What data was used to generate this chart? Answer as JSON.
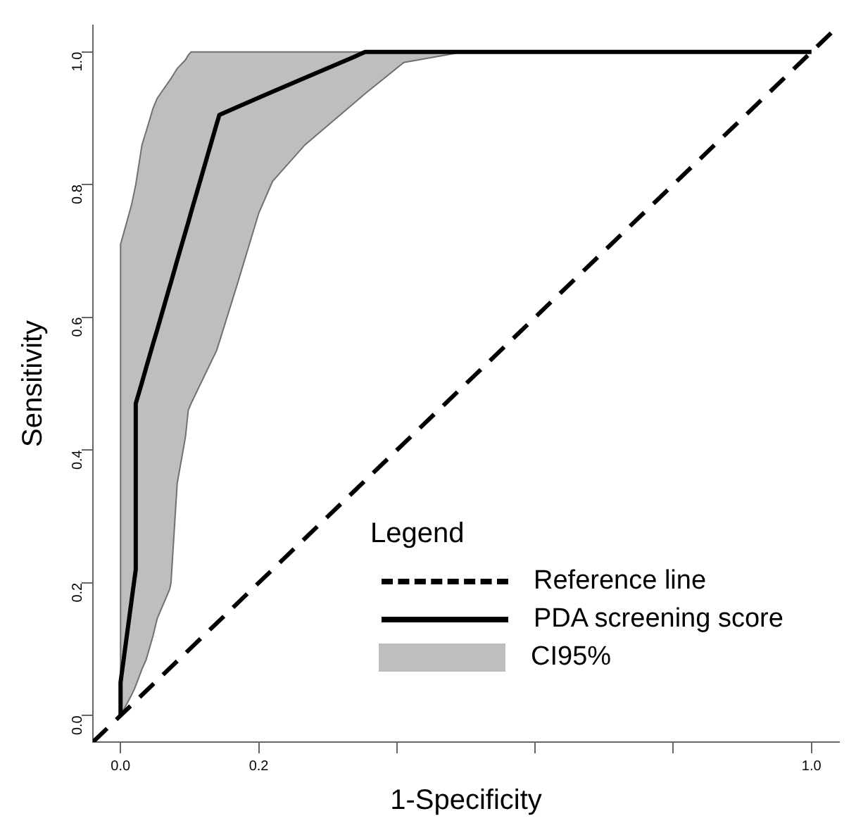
{
  "chart_data": {
    "type": "line",
    "xlabel": "1-Specificity",
    "ylabel": "Sensitivity",
    "legend_title": "Legend",
    "legend": "bottom right",
    "grid": false,
    "marker": "none",
    "annotations": [
      "CI95%"
    ],
    "xlim": [
      -0.04,
      1.04
    ],
    "ylim": [
      -0.04,
      1.04
    ],
    "xticks": [
      {
        "value": 0,
        "label": "0.0"
      },
      {
        "value": 0.2,
        "label": "0.2"
      },
      {
        "value": 0.4,
        "label": null
      },
      {
        "value": 0.6,
        "label": null
      },
      {
        "value": 0.8,
        "label": null
      },
      {
        "value": 1,
        "label": "1.0"
      }
    ],
    "yticks": [
      {
        "value": 0,
        "label": "0.0"
      },
      {
        "value": 0.2,
        "label": "0.2"
      },
      {
        "value": 0.4,
        "label": "0.4"
      },
      {
        "value": 0.6,
        "label": "0.6"
      },
      {
        "value": 0.8,
        "label": "0.8"
      },
      {
        "value": 1,
        "label": "1.0"
      }
    ],
    "series": [
      {
        "name": "Reference line",
        "line_style": "dashed",
        "color": "#000000",
        "x": [
          -0.04,
          1.04
        ],
        "values": [
          -0.04,
          1.04
        ]
      },
      {
        "name": "PDA screening score",
        "line_style": "solid",
        "color": "#000000",
        "x": [
          0,
          0,
          0.016,
          0.02,
          0.022,
          0.022,
          0.031,
          0.037,
          0.047,
          0.053,
          0.071,
          0.073,
          0.082,
          0.094,
          0.098,
          0.102,
          0.139,
          0.143,
          0.169,
          0.2,
          0.22,
          0.267,
          0.337,
          0.354,
          0.41,
          0.496,
          1
        ],
        "values": [
          0,
          0.05,
          0.174,
          0.205,
          0.22,
          0.47,
          0.502,
          0.524,
          0.56,
          0.581,
          0.646,
          0.653,
          0.686,
          0.729,
          0.743,
          0.758,
          0.891,
          0.905,
          0.917,
          0.931,
          0.94,
          0.961,
          0.992,
          1,
          1,
          1,
          1
        ],
        "lower": [
          0,
          0,
          0.031,
          0.04,
          0.045,
          0.045,
          0.07,
          0.084,
          0.12,
          0.146,
          0.19,
          0.2,
          0.35,
          0.42,
          0.46,
          0.47,
          0.55,
          0.563,
          0.65,
          0.757,
          0.805,
          0.86,
          0.922,
          0.937,
          0.984,
          1,
          1
        ],
        "upper": [
          0.71,
          0.71,
          0.77,
          0.79,
          0.8,
          0.8,
          0.86,
          0.88,
          0.915,
          0.93,
          0.957,
          0.96,
          0.975,
          0.988,
          0.995,
          1,
          1,
          1,
          1,
          1,
          1,
          1,
          1,
          1,
          1,
          1,
          1
        ]
      }
    ]
  }
}
